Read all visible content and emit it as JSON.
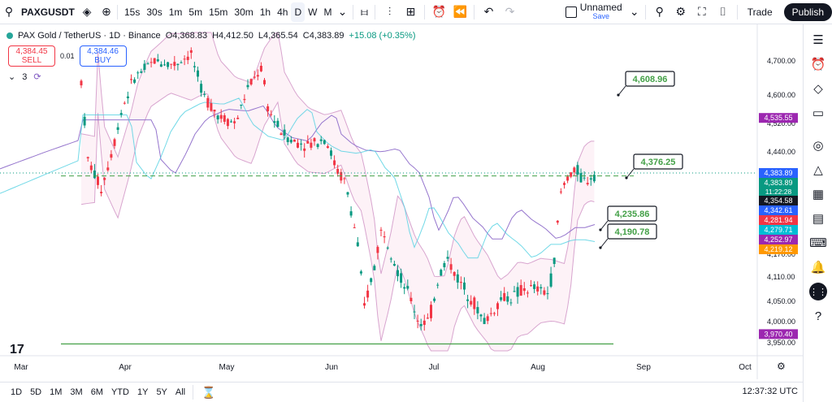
{
  "toolbar": {
    "symbol": "PAXGUSDT",
    "intervals": [
      "15s",
      "30s",
      "1m",
      "5m",
      "15m",
      "30m",
      "1h",
      "4h",
      "D",
      "W",
      "M"
    ],
    "active_interval": "D",
    "layout_name": "Unnamed",
    "layout_status": "Save",
    "trade_label": "Trade",
    "publish_label": "Publish"
  },
  "legend": {
    "title": "PAX Gold / TetherUS · 1D · Binance",
    "o": "O4,368.83",
    "h": "H4,412.50",
    "l": "L4,365.54",
    "c": "C4,383.89",
    "change": "+15.08 (+0.35%)"
  },
  "order": {
    "sell_price": "4,384.45",
    "sell_label": "SELL",
    "spread": "0.01",
    "buy_price": "4,384.46",
    "buy_label": "BUY"
  },
  "indicators_count": "3",
  "bottom": {
    "ranges": [
      "1D",
      "5D",
      "1M",
      "3M",
      "6M",
      "YTD",
      "1Y",
      "5Y",
      "All"
    ],
    "time": "12:37:32 UTC"
  },
  "colors": {
    "up": "#089981",
    "down": "#f23645",
    "bb_fill": "#fce8f0",
    "bb_line": "#d8a5cf",
    "ma_slow": "#9575cd",
    "ma_fast": "#4dd0e1",
    "annotation": "#43a047"
  },
  "chart_data": {
    "type": "candlestick",
    "y_ticks": [
      "4,700.00",
      "4,600.00",
      "4,520.00",
      "4,440.00",
      "4,383.89",
      "4,354.58",
      "4,170.00",
      "4,110.00",
      "4,050.00",
      "4,000.00",
      "3,950.00"
    ],
    "x_ticks": [
      "Mar",
      "Apr",
      "May",
      "Jun",
      "Jul",
      "Aug",
      "Sep",
      "Oct"
    ],
    "ylim": [
      3930,
      4780
    ],
    "last_price": 4383.89,
    "countdown": "11:22:28",
    "price_badges": [
      {
        "label": "4,535.55",
        "value": 4535.55,
        "color": "#9c27b0"
      },
      {
        "label": "4,383.89",
        "value": 4383.89,
        "color": "#2962ff"
      },
      {
        "label": "4,383.89",
        "value": 4383.89,
        "color": "#089981"
      },
      {
        "label": "4,354.58",
        "value": 4354.58,
        "color": "#131722"
      },
      {
        "label": "4,342.61",
        "value": 4342.61,
        "color": "#2962ff"
      },
      {
        "label": "4,281.94",
        "value": 4281.94,
        "color": "#f23645"
      },
      {
        "label": "4,279.71",
        "value": 4279.71,
        "color": "#00bcd4"
      },
      {
        "label": "4,252.97",
        "value": 4252.97,
        "color": "#9c27b0"
      },
      {
        "label": "4,219.12",
        "value": 4219.12,
        "color": "#ff9800"
      },
      {
        "label": "3,970.40",
        "value": 3970.4,
        "color": "#9c27b0"
      }
    ],
    "annotations": [
      {
        "label": "4,608.96",
        "value": 4608.96
      },
      {
        "label": "4,376.25",
        "value": 4376.25
      },
      {
        "label": "4,235.86",
        "value": 4235.86
      },
      {
        "label": "4,190.78",
        "value": 4190.78
      }
    ],
    "support_level": 3947,
    "dashed_level": 4376.25
  }
}
